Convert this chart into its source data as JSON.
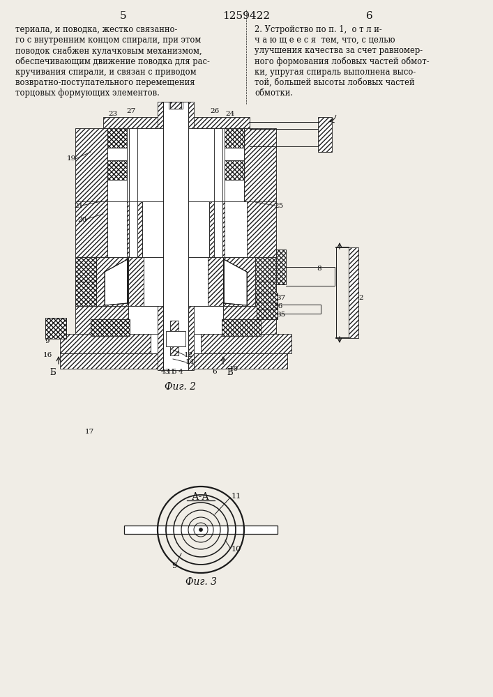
{
  "page_bg": "#f0ede6",
  "line_color": "#1a1a1a",
  "text_color": "#0d0d0d",
  "header_num_left": "5",
  "header_patent": "1259422",
  "header_num_right": "6",
  "text_left": [
    "териала, и поводка, жестко связанно-",
    "го с внутренним концом спирали, при этом",
    "поводок снабжен кулачковым механизмом,",
    "обеспечивающим движение поводка для рас-",
    "кручивания спирали, и связан с приводом",
    "возвратно-поступательного перемещения",
    "торцовых формующих элементов."
  ],
  "text_right_bold": "2. Устройство по п. 1,  о т л и-",
  "text_right": [
    "ч а ю щ е е с я  тем, что, с целью",
    "улучшения качества за счет равномер-",
    "ного формования лобовых частей обмот-",
    "ки, упругая спираль выполнена высо-",
    "той, большей высоты лобовых частей",
    "обмотки."
  ],
  "fig2_label": "Фиг. 2",
  "fig3_label": "Фиг. 3",
  "fig3_section_label": "А-А"
}
